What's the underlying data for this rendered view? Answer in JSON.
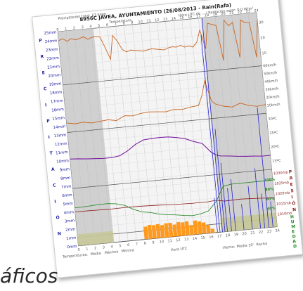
{
  "caption": "áficos",
  "chart_data": {
    "type": "line",
    "title": "8956C JÁVEA, AYUNTAMIENTO (26/08/2013 - Rain(Rafa)",
    "header_left": "Precipitación total: 67.6mm",
    "header_left2": "Temperatura",
    "header_right": "Hora UTC de ... / Radiación solar: 0.0 W/m²",
    "x_ticks": [
      0,
      1,
      2,
      3,
      4,
      5,
      6,
      7,
      8,
      9,
      10,
      11,
      12,
      13,
      14,
      15,
      16,
      17,
      18,
      19,
      20,
      21,
      22,
      23,
      24
    ],
    "left_scale_labels": [
      "25mm",
      "24mm",
      "23mm",
      "22mm",
      "21mm",
      "20mm",
      "19mm",
      "18mm",
      "17mm",
      "16mm",
      "15mm",
      "14mm",
      "13mm",
      "12mm",
      "11mm",
      "10mm",
      "9mm",
      "8mm",
      "7mm",
      "6mm",
      "5mm",
      "4mm",
      "3mm",
      "2mm",
      "1mm",
      "0mm"
    ],
    "left_side_letters": [
      "P",
      "R",
      "E",
      "C",
      "I",
      "P",
      "I",
      "T",
      "A",
      "C",
      "I",
      "Ó",
      "N"
    ],
    "right_wind_labels": [
      "30",
      "20",
      "10",
      "",
      "60km/h",
      "50km/h",
      "40km/h",
      "30km/h",
      "20km/h",
      "10km/h"
    ],
    "right_temp_labels": [
      "30ºC",
      "25ºC",
      "20ºC",
      "15ºC"
    ],
    "right_pressure_labels": [
      "1030mb",
      "1025mb",
      "1020mb",
      "1015mb",
      "1010mb"
    ],
    "right_pressure_letters": [
      "P",
      "R",
      "E",
      "S",
      "I",
      "Ó",
      "N"
    ],
    "right_hum_labels": [
      "100%",
      "80%",
      "60%",
      "40%",
      "20%"
    ],
    "right_hum_letters": [
      "H",
      "U",
      "M",
      "E",
      "D",
      "A",
      "D"
    ],
    "xlabel": "Hora UTC",
    "legend_temp": {
      "prefix": "Temperaturas:",
      "media": "Media",
      "maxima": "Máxima",
      "minima": "Mínima"
    },
    "legend_wind": {
      "prefix": "Viento:",
      "media": "Media 10'",
      "racha": "Racha"
    },
    "colors": {
      "wind_dir": "#c8641e",
      "wind_speed": "#c8641e",
      "temp": "#7a1fa2",
      "temp_min": "#2020c8",
      "pressure": "#8b1a1a",
      "humidity": "#2e8b2e",
      "sun": "#ff9a1e",
      "rain": "#2828d2",
      "hum_fill": "#c8c89a",
      "night": "#d0d0d0",
      "title": "#222222"
    },
    "night_hours": [
      [
        0,
        4.3
      ],
      [
        17.3,
        24
      ]
    ],
    "series": [
      {
        "name": "wind_direction_deg",
        "panel": "direction",
        "ylim": [
          0,
          360
        ],
        "x": [
          0,
          0.5,
          1,
          1.5,
          2,
          2.5,
          3,
          3.5,
          4,
          4.5,
          5,
          5.5,
          6,
          6.5,
          7,
          7.5,
          8,
          8.5,
          9,
          9.5,
          10,
          10.5,
          11,
          11.5,
          12,
          12.5,
          13,
          13.5,
          14,
          14.5,
          15,
          15.5,
          16,
          16.5,
          17,
          17.5,
          18,
          18.5,
          19,
          19.5,
          20,
          20.5,
          21,
          21.5,
          22,
          22.5,
          23,
          23.5,
          24
        ],
        "values": [
          300,
          310,
          290,
          305,
          295,
          300,
          310,
          290,
          300,
          305,
          295,
          220,
          140,
          300,
          260,
          200,
          180,
          190,
          185,
          180,
          175,
          180,
          185,
          180,
          175,
          170,
          180,
          185,
          180,
          190,
          175,
          180,
          170,
          200,
          280,
          150,
          320,
          310,
          300,
          60,
          330,
          290,
          310,
          70,
          320,
          300,
          300,
          60,
          310
        ]
      },
      {
        "name": "wind_speed",
        "panel": "wind",
        "ylim": [
          0,
          60
        ],
        "x": [
          0,
          1,
          2,
          3,
          4,
          5,
          6,
          7,
          8,
          9,
          10,
          11,
          12,
          13,
          14,
          15,
          16,
          16.5,
          17,
          17.3,
          17.6,
          18,
          19,
          20,
          21,
          22,
          23,
          24
        ],
        "values": [
          12,
          10,
          11,
          9,
          10,
          11,
          9,
          14,
          13,
          15,
          16,
          15,
          14,
          16,
          15,
          17,
          18,
          30,
          48,
          35,
          22,
          18,
          14,
          12,
          16,
          12,
          10,
          11
        ]
      },
      {
        "name": "temperature",
        "panel": "temp",
        "ylim": [
          12,
          32
        ],
        "x": [
          0,
          1,
          2,
          3,
          4,
          5,
          6,
          7,
          8,
          9,
          10,
          11,
          12,
          13,
          14,
          15,
          16,
          17,
          17.5,
          18,
          19,
          20,
          21,
          22,
          23,
          24
        ],
        "values": [
          22.5,
          22.3,
          22,
          21.8,
          21.6,
          21.6,
          22,
          23.5,
          25.5,
          26.8,
          27,
          27.1,
          27,
          26.5,
          25.8,
          24.5,
          23.5,
          20,
          19,
          18.5,
          18.2,
          17.8,
          17.5,
          17.3,
          17,
          17
        ]
      },
      {
        "name": "pressure",
        "panel": "pressure",
        "ylim": [
          1008,
          1032
        ],
        "x": [
          0,
          2,
          4,
          6,
          8,
          10,
          12,
          14,
          16,
          17,
          18,
          20,
          22,
          24
        ],
        "values": [
          1020.5,
          1020.4,
          1020.2,
          1020.3,
          1020.2,
          1019.9,
          1019.5,
          1019.2,
          1019.2,
          1019.6,
          1018.8,
          1019,
          1018.6,
          1018
        ]
      },
      {
        "name": "humidity",
        "panel": "pressure_hum",
        "ylim": [
          0,
          100
        ],
        "x": [
          0,
          1,
          2,
          3,
          4,
          5,
          6,
          7,
          8,
          9,
          10,
          11,
          12,
          13,
          14,
          15,
          16,
          17,
          18,
          19,
          20,
          21,
          22,
          23,
          24
        ],
        "values": [
          80,
          80,
          81,
          82,
          82,
          80,
          75,
          65,
          58,
          55,
          50,
          47,
          45,
          42,
          40,
          42,
          47,
          65,
          95,
          98,
          98,
          98,
          98,
          98,
          98
        ]
      },
      {
        "name": "sunshine",
        "panel": "bottom",
        "ylim": [
          0,
          1
        ],
        "x": [
          8,
          8.5,
          9,
          9.5,
          10,
          10.5,
          11,
          11.5,
          12,
          12.5,
          13,
          13.5,
          14,
          14.5,
          15,
          15.5,
          16
        ],
        "values": [
          0.9,
          1,
          0.95,
          1,
          0.9,
          1,
          1,
          0.85,
          1,
          0.95,
          1,
          0.7,
          1,
          0.9,
          0.8,
          0.6,
          0.3
        ]
      },
      {
        "name": "precipitation_mm",
        "panel": "rain",
        "ylim": [
          0,
          25
        ],
        "x": [
          16.8,
          17.1,
          17.4,
          17.7,
          18,
          18.5,
          19,
          20,
          21,
          22,
          22.5,
          23,
          23.5
        ],
        "values": [
          4,
          23,
          25,
          12,
          8,
          5,
          6,
          3,
          5,
          7,
          4,
          14,
          3
        ]
      }
    ]
  }
}
